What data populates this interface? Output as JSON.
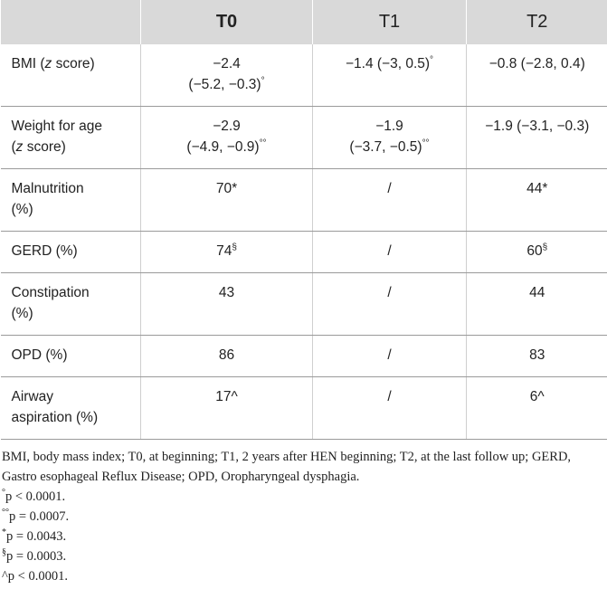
{
  "table": {
    "header": [
      "T0",
      "T1",
      "T2"
    ],
    "rows": [
      {
        "label": [
          [
            "BMI (",
            "z",
            " score)"
          ]
        ],
        "cells": [
          {
            "lines": [
              "−2.4",
              "(−5.2, −0.3)"
            ],
            "sup": "°"
          },
          {
            "lines": [
              "−1.4 (−3, 0.5)"
            ],
            "sup": "°"
          },
          {
            "lines": [
              "−0.8 (−2.8, 0.4)"
            ]
          }
        ]
      },
      {
        "label": [
          [
            "Weight for age"
          ],
          [
            "(",
            "z",
            " score)"
          ]
        ],
        "cells": [
          {
            "lines": [
              "−2.9",
              "(−4.9, −0.9)"
            ],
            "sup": "°°"
          },
          {
            "lines": [
              "−1.9",
              "(−3.7, −0.5)"
            ],
            "sup": "°°"
          },
          {
            "lines": [
              "−1.9 (−3.1, −0.3)"
            ]
          }
        ]
      },
      {
        "label": [
          [
            "Malnutrition"
          ],
          [
            "(%)"
          ]
        ],
        "cells": [
          {
            "lines": [
              "70*"
            ]
          },
          {
            "lines": [
              "/"
            ]
          },
          {
            "lines": [
              "44*"
            ]
          }
        ]
      },
      {
        "label": [
          [
            "GERD (%)"
          ]
        ],
        "cells": [
          {
            "lines": [
              "74"
            ],
            "sup": "§"
          },
          {
            "lines": [
              "/"
            ]
          },
          {
            "lines": [
              "60"
            ],
            "sup": "§"
          }
        ]
      },
      {
        "label": [
          [
            "Constipation"
          ],
          [
            "(%)"
          ]
        ],
        "cells": [
          {
            "lines": [
              "43"
            ]
          },
          {
            "lines": [
              "/"
            ]
          },
          {
            "lines": [
              "44"
            ]
          }
        ]
      },
      {
        "label": [
          [
            "OPD (%)"
          ]
        ],
        "cells": [
          {
            "lines": [
              "86"
            ]
          },
          {
            "lines": [
              "/"
            ]
          },
          {
            "lines": [
              "83"
            ]
          }
        ]
      },
      {
        "label": [
          [
            "Airway"
          ],
          [
            "aspiration (%)"
          ]
        ],
        "cells": [
          {
            "lines": [
              "17^"
            ]
          },
          {
            "lines": [
              "/"
            ]
          },
          {
            "lines": [
              "6^"
            ]
          }
        ]
      }
    ]
  },
  "notes": {
    "abbreviations": "BMI, body mass index; T0, at beginning; T1, 2 years after HEN beginning; T2, at the last follow up; GERD, Gastro esophageal Reflux Disease; OPD, Oropharyngeal dysphagia.",
    "items": [
      {
        "mark": "°",
        "text": "p < 0.0001."
      },
      {
        "mark": "°°",
        "text": "p = 0.0007."
      },
      {
        "mark": "*",
        "text": "p = 0.0043."
      },
      {
        "mark": "§",
        "text": "p = 0.0003."
      },
      {
        "text": "^p < 0.0001."
      }
    ]
  }
}
